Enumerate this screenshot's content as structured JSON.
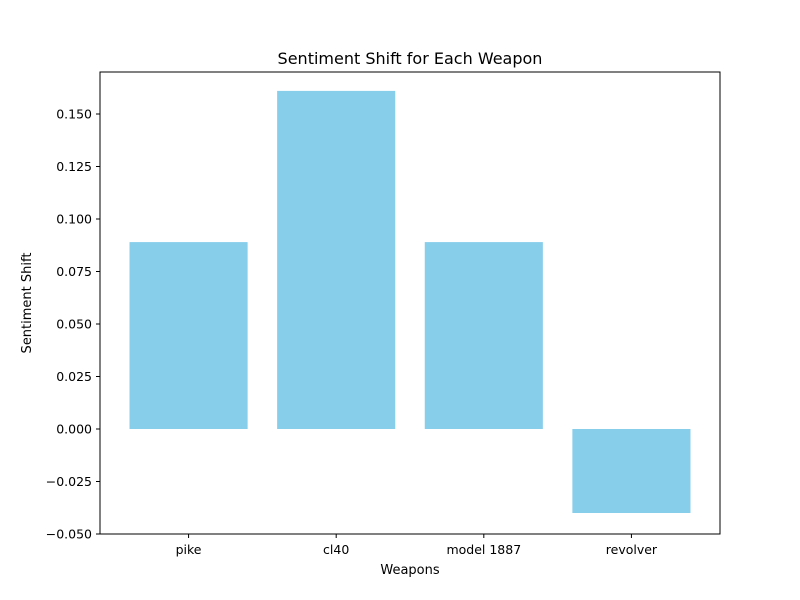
{
  "chart_data": {
    "type": "bar",
    "title": "Sentiment Shift for Each Weapon",
    "xlabel": "Weapons",
    "ylabel": "Sentiment Shift",
    "categories": [
      "pike",
      "cl40",
      "model 1887",
      "revolver"
    ],
    "values": [
      0.089,
      0.161,
      0.089,
      -0.04
    ],
    "ylim": [
      -0.05,
      0.17
    ],
    "yticks": [
      -0.05,
      -0.025,
      0.0,
      0.025,
      0.05,
      0.075,
      0.1,
      0.125,
      0.15
    ],
    "ytick_labels": [
      "−0.050",
      "−0.025",
      "0.000",
      "0.025",
      "0.050",
      "0.075",
      "0.100",
      "0.125",
      "0.150"
    ],
    "bar_color": "#87ceeb",
    "grid": false,
    "legend": "none"
  }
}
